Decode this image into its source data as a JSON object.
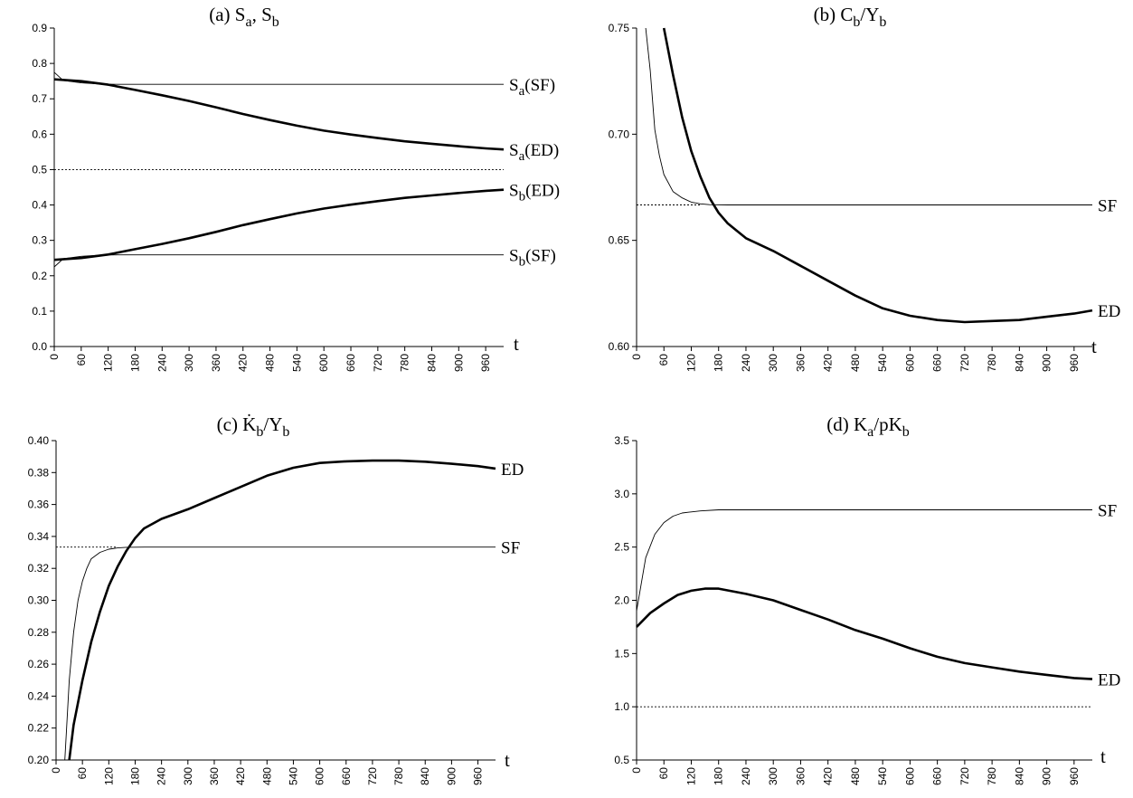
{
  "chart_data": [
    {
      "type": "line",
      "panel": "a",
      "title": "(a) S_a, S_b",
      "title_parts": [
        {
          "t": "(a)  S",
          "s": false
        },
        {
          "t": "a",
          "s": true
        },
        {
          "t": ", S",
          "s": false
        },
        {
          "t": "b",
          "s": true
        }
      ],
      "xlabel": "t",
      "xlim": [
        0,
        1000
      ],
      "x_ticks": [
        0,
        60,
        120,
        180,
        240,
        300,
        360,
        420,
        480,
        540,
        600,
        660,
        720,
        780,
        840,
        900,
        960
      ],
      "ylim": [
        0,
        0.9
      ],
      "y_ticks": [
        0.0,
        0.1,
        0.2,
        0.3,
        0.4,
        0.5,
        0.6,
        0.7,
        0.8,
        0.9
      ],
      "y_decimals": 1,
      "series": [
        {
          "style": "thin",
          "x": [
            0,
            20,
            60,
            100,
            140,
            200,
            300,
            500,
            700,
            1000
          ],
          "y": [
            0.775,
            0.752,
            0.745,
            0.742,
            0.741,
            0.741,
            0.741,
            0.741,
            0.741,
            0.741
          ]
        },
        {
          "style": "thick",
          "x": [
            0,
            60,
            120,
            180,
            240,
            300,
            360,
            420,
            480,
            540,
            600,
            660,
            720,
            780,
            840,
            900,
            960,
            1000
          ],
          "y": [
            0.755,
            0.75,
            0.74,
            0.725,
            0.71,
            0.694,
            0.676,
            0.657,
            0.64,
            0.624,
            0.61,
            0.599,
            0.589,
            0.58,
            0.573,
            0.566,
            0.56,
            0.557
          ]
        },
        {
          "style": "thin",
          "x": [
            0,
            20,
            60,
            100,
            140,
            200,
            300,
            500,
            700,
            1000
          ],
          "y": [
            0.225,
            0.248,
            0.255,
            0.258,
            0.259,
            0.259,
            0.259,
            0.259,
            0.259,
            0.259
          ]
        },
        {
          "style": "thick",
          "x": [
            0,
            60,
            120,
            180,
            240,
            300,
            360,
            420,
            480,
            540,
            600,
            660,
            720,
            780,
            840,
            900,
            960,
            1000
          ],
          "y": [
            0.245,
            0.25,
            0.26,
            0.275,
            0.29,
            0.306,
            0.324,
            0.343,
            0.36,
            0.376,
            0.39,
            0.401,
            0.411,
            0.42,
            0.427,
            0.434,
            0.44,
            0.443
          ]
        },
        {
          "style": "dotted",
          "x": [
            0,
            1000
          ],
          "y": [
            0.5,
            0.5
          ]
        }
      ],
      "annotations": [
        {
          "parts": [
            {
              "t": "S",
              "s": false
            },
            {
              "t": "a",
              "s": true
            },
            {
              "t": "(SF)",
              "s": false
            }
          ],
          "x": 1000,
          "y": 0.741
        },
        {
          "parts": [
            {
              "t": "S",
              "s": false
            },
            {
              "t": "a",
              "s": true
            },
            {
              "t": "(ED)",
              "s": false
            }
          ],
          "x": 1000,
          "y": 0.557
        },
        {
          "parts": [
            {
              "t": "S",
              "s": false
            },
            {
              "t": "b",
              "s": true
            },
            {
              "t": "(ED)",
              "s": false
            }
          ],
          "x": 1000,
          "y": 0.443
        },
        {
          "parts": [
            {
              "t": "S",
              "s": false
            },
            {
              "t": "b",
              "s": true
            },
            {
              "t": "(SF)",
              "s": false
            }
          ],
          "x": 1000,
          "y": 0.259
        }
      ]
    },
    {
      "type": "line",
      "panel": "b",
      "title": "(b) C_b/Y_b",
      "title_parts": [
        {
          "t": "(b)  C",
          "s": false
        },
        {
          "t": "b",
          "s": true
        },
        {
          "t": "/Y",
          "s": false
        },
        {
          "t": "b",
          "s": true
        }
      ],
      "xlabel": "t",
      "xlim": [
        0,
        1000
      ],
      "x_ticks": [
        0,
        60,
        120,
        180,
        240,
        300,
        360,
        420,
        480,
        540,
        600,
        660,
        720,
        780,
        840,
        900,
        960
      ],
      "ylim": [
        0.6,
        0.75
      ],
      "y_ticks": [
        0.6,
        0.65,
        0.7,
        0.75
      ],
      "y_decimals": 2,
      "series": [
        {
          "style": "thin",
          "x": [
            20,
            30,
            40,
            50,
            60,
            80,
            100,
            120,
            140,
            160,
            200,
            300,
            500,
            700,
            1000
          ],
          "y": [
            0.75,
            0.73,
            0.702,
            0.69,
            0.681,
            0.673,
            0.67,
            0.668,
            0.6672,
            0.6668,
            0.6667,
            0.6667,
            0.6667,
            0.6667,
            0.6667
          ]
        },
        {
          "style": "thick",
          "x": [
            60,
            80,
            100,
            120,
            140,
            160,
            180,
            200,
            240,
            300,
            360,
            420,
            480,
            540,
            600,
            660,
            720,
            780,
            840,
            900,
            960,
            1000
          ],
          "y": [
            0.75,
            0.728,
            0.708,
            0.692,
            0.68,
            0.67,
            0.663,
            0.658,
            0.651,
            0.645,
            0.638,
            0.631,
            0.624,
            0.618,
            0.6145,
            0.6125,
            0.6115,
            0.612,
            0.6125,
            0.614,
            0.6155,
            0.617
          ]
        },
        {
          "style": "dotted",
          "x": [
            0,
            140
          ],
          "y": [
            0.6667,
            0.6667
          ]
        }
      ],
      "annotations": [
        {
          "parts": [
            {
              "t": "SF",
              "s": false
            }
          ],
          "x": 1000,
          "y": 0.6667
        },
        {
          "parts": [
            {
              "t": "ED",
              "s": false
            }
          ],
          "x": 1000,
          "y": 0.617
        }
      ]
    },
    {
      "type": "line",
      "panel": "c",
      "title": "(c) K̇_b/Y_b",
      "title_parts": [
        {
          "t": "(c)  K̇",
          "s": false
        },
        {
          "t": "b",
          "s": true
        },
        {
          "t": "/Y",
          "s": false
        },
        {
          "t": "b",
          "s": true
        }
      ],
      "xlabel": "t",
      "xlim": [
        0,
        1000
      ],
      "x_ticks": [
        0,
        60,
        120,
        180,
        240,
        300,
        360,
        420,
        480,
        540,
        600,
        660,
        720,
        780,
        840,
        900,
        960
      ],
      "ylim": [
        0.2,
        0.4
      ],
      "y_ticks": [
        0.2,
        0.22,
        0.24,
        0.26,
        0.28,
        0.3,
        0.32,
        0.34,
        0.36,
        0.38,
        0.4
      ],
      "y_decimals": 2,
      "series": [
        {
          "style": "thin",
          "x": [
            20,
            30,
            40,
            50,
            60,
            70,
            80,
            100,
            120,
            140,
            160,
            200,
            300,
            500,
            700,
            1000
          ],
          "y": [
            0.2,
            0.25,
            0.28,
            0.3,
            0.312,
            0.32,
            0.326,
            0.33,
            0.332,
            0.3328,
            0.3332,
            0.3333,
            0.3333,
            0.3333,
            0.3333,
            0.3333
          ]
        },
        {
          "style": "thick",
          "x": [
            30,
            40,
            60,
            80,
            100,
            120,
            140,
            160,
            180,
            200,
            240,
            300,
            360,
            420,
            480,
            540,
            600,
            660,
            720,
            780,
            840,
            900,
            960,
            1000
          ],
          "y": [
            0.2,
            0.222,
            0.25,
            0.274,
            0.293,
            0.309,
            0.321,
            0.331,
            0.339,
            0.345,
            0.351,
            0.357,
            0.364,
            0.371,
            0.378,
            0.383,
            0.386,
            0.387,
            0.3875,
            0.3875,
            0.3868,
            0.3855,
            0.384,
            0.3825
          ]
        },
        {
          "style": "dotted",
          "x": [
            0,
            140
          ],
          "y": [
            0.3333,
            0.3333
          ]
        }
      ],
      "annotations": [
        {
          "parts": [
            {
              "t": "ED",
              "s": false
            }
          ],
          "x": 1000,
          "y": 0.3825
        },
        {
          "parts": [
            {
              "t": "SF",
              "s": false
            }
          ],
          "x": 1000,
          "y": 0.3333
        }
      ]
    },
    {
      "type": "line",
      "panel": "d",
      "title": "(d) K_a/pK_b",
      "title_parts": [
        {
          "t": "(d)  K",
          "s": false
        },
        {
          "t": "a",
          "s": true
        },
        {
          "t": "/pK",
          "s": false
        },
        {
          "t": "b",
          "s": true
        }
      ],
      "xlabel": "t",
      "xlim": [
        0,
        1000
      ],
      "x_ticks": [
        0,
        60,
        120,
        180,
        240,
        300,
        360,
        420,
        480,
        540,
        600,
        660,
        720,
        780,
        840,
        900,
        960
      ],
      "ylim": [
        0.5,
        3.5
      ],
      "y_ticks": [
        0.5,
        1.0,
        1.5,
        2.0,
        2.5,
        3.0,
        3.5
      ],
      "y_decimals": 1,
      "series": [
        {
          "style": "thin",
          "x": [
            0,
            20,
            40,
            60,
            80,
            100,
            120,
            140,
            180,
            240,
            300,
            500,
            700,
            1000
          ],
          "y": [
            1.9,
            2.4,
            2.62,
            2.73,
            2.79,
            2.82,
            2.83,
            2.84,
            2.85,
            2.85,
            2.85,
            2.85,
            2.85,
            2.85
          ]
        },
        {
          "style": "thick",
          "x": [
            0,
            30,
            60,
            90,
            120,
            150,
            180,
            240,
            300,
            360,
            420,
            480,
            540,
            600,
            660,
            720,
            780,
            840,
            900,
            960,
            1000
          ],
          "y": [
            1.75,
            1.88,
            1.97,
            2.05,
            2.09,
            2.11,
            2.11,
            2.06,
            2.0,
            1.91,
            1.82,
            1.72,
            1.64,
            1.55,
            1.47,
            1.41,
            1.37,
            1.33,
            1.3,
            1.27,
            1.26
          ]
        },
        {
          "style": "dotted",
          "x": [
            0,
            1000
          ],
          "y": [
            1.0,
            1.0
          ]
        }
      ],
      "annotations": [
        {
          "parts": [
            {
              "t": "SF",
              "s": false
            }
          ],
          "x": 1000,
          "y": 2.85
        },
        {
          "parts": [
            {
              "t": "ED",
              "s": false
            }
          ],
          "x": 1000,
          "y": 1.26
        }
      ]
    }
  ]
}
